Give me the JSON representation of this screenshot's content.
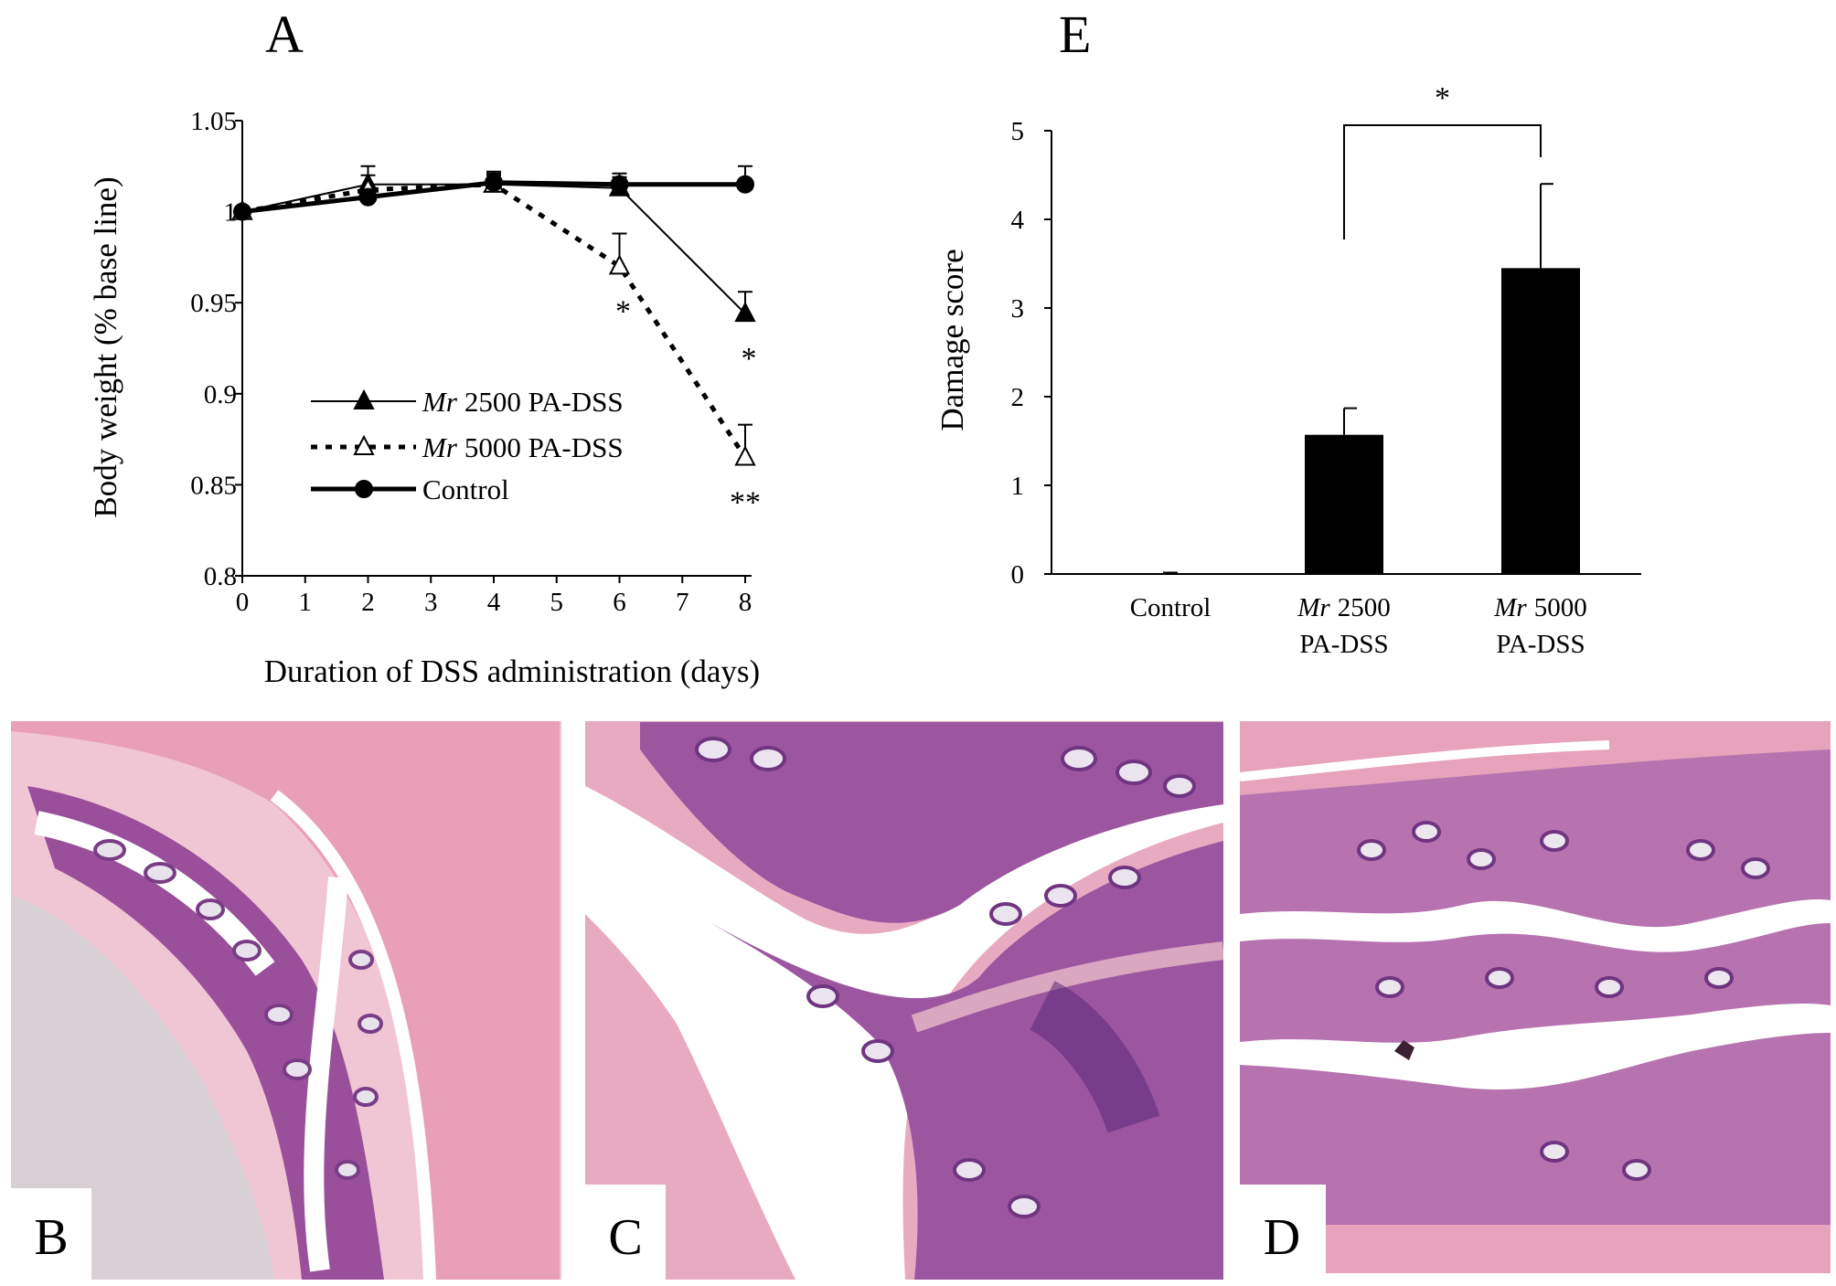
{
  "panels": {
    "A": "A",
    "B": "B",
    "C": "C",
    "D": "D",
    "E": "E"
  },
  "chart_data": [
    {
      "panel": "A",
      "type": "line",
      "xlabel": "Duration of DSS administration (days)",
      "ylabel": "Body weight (% base line)",
      "xlim": [
        0,
        8
      ],
      "ylim": [
        0.8,
        1.05
      ],
      "x_ticks": [
        "0",
        "1",
        "2",
        "3",
        "4",
        "5",
        "6",
        "7",
        "8"
      ],
      "y_ticks": [
        "0.8",
        "0.85",
        "0.9",
        "0.95",
        "1",
        "1.05"
      ],
      "x": [
        0,
        2,
        4,
        6,
        8
      ],
      "series": [
        {
          "key": "mr2500",
          "name_italic": "Mr",
          "name": "2500 PA-DSS",
          "style": "thin-solid-filled-triangle",
          "values": [
            1.0,
            1.015,
            1.015,
            1.013,
            0.944
          ],
          "errors": [
            0.002,
            0.01,
            0.005,
            0.008,
            0.012
          ],
          "annotations": [
            {
              "x": 8,
              "text": "*"
            }
          ]
        },
        {
          "key": "mr5000",
          "name_italic": "Mr",
          "name": "5000 PA-DSS",
          "style": "dotted-open-triangle",
          "values": [
            1.0,
            1.012,
            1.015,
            0.97,
            0.865
          ],
          "errors": [
            0.002,
            0.008,
            0.006,
            0.018,
            0.018
          ],
          "annotations": [
            {
              "x": 6,
              "text": "*"
            },
            {
              "x": 8,
              "text": "**"
            }
          ]
        },
        {
          "key": "control",
          "name": "Control",
          "style": "thick-solid-filled-circle",
          "values": [
            1.0,
            1.008,
            1.016,
            1.015,
            1.015
          ],
          "errors": [
            0.002,
            0.004,
            0.006,
            0.004,
            0.01
          ],
          "annotations": []
        }
      ],
      "legend_position": "center"
    },
    {
      "panel": "E",
      "type": "bar",
      "ylabel": "Damage score",
      "ylim": [
        0,
        5
      ],
      "y_ticks": [
        "0",
        "1",
        "2",
        "3",
        "4",
        "5"
      ],
      "categories": [
        {
          "lines": [
            "Control"
          ]
        },
        {
          "italic": "Mr",
          "lines": [
            "2500",
            "PA-DSS"
          ]
        },
        {
          "italic": "Mr",
          "lines": [
            "5000",
            "PA-DSS"
          ]
        }
      ],
      "values": [
        0,
        1.57,
        3.45
      ],
      "errors": [
        0,
        0.3,
        0.95
      ],
      "significance": {
        "between": [
          1,
          2
        ],
        "text": "*"
      }
    }
  ]
}
